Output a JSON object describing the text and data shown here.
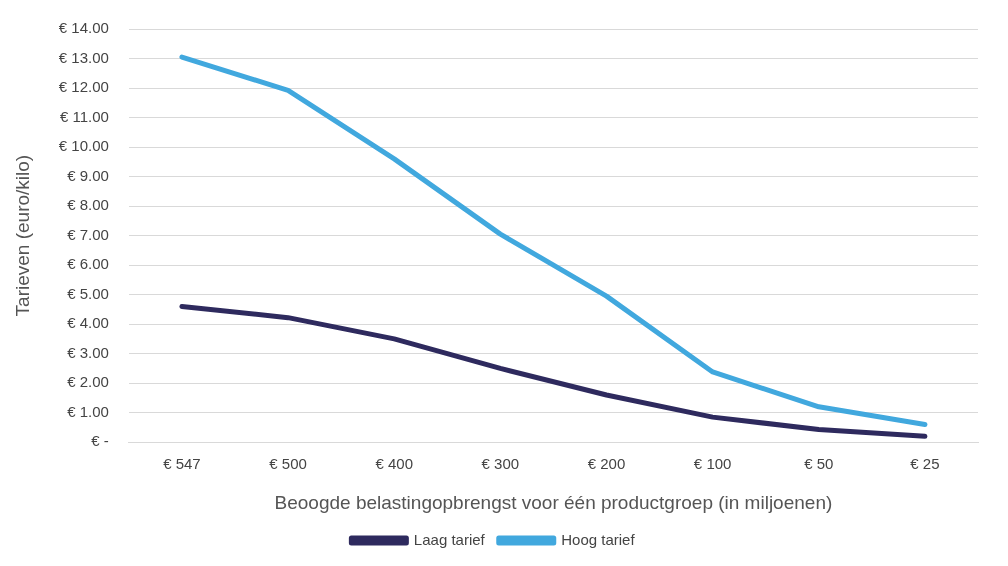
{
  "chart_data": {
    "type": "line",
    "xlabel": "Beoogde belastingopbrengst voor één productgroep (in miljoenen)",
    "ylabel": "Tarieven (euro/kilo)",
    "categories": [
      "€ 547",
      "€ 500",
      "€ 400",
      "€ 300",
      "€ 200",
      "€ 100",
      "€ 50",
      "€ 25"
    ],
    "series": [
      {
        "name": "Laag tarief",
        "color": "#2e2a5e",
        "values": [
          4.6,
          4.22,
          3.5,
          2.5,
          1.6,
          0.85,
          0.43,
          0.2
        ]
      },
      {
        "name": "Hoog tarief",
        "color": "#41a8de",
        "values": [
          13.05,
          11.92,
          9.6,
          7.05,
          4.95,
          2.38,
          1.2,
          0.6
        ]
      }
    ],
    "ylim": [
      0,
      14
    ],
    "yticks": [
      {
        "value": 0,
        "label": "€ -"
      },
      {
        "value": 1,
        "label": "€ 1.00"
      },
      {
        "value": 2,
        "label": "€ 2.00"
      },
      {
        "value": 3,
        "label": "€ 3.00"
      },
      {
        "value": 4,
        "label": "€ 4.00"
      },
      {
        "value": 5,
        "label": "€ 5.00"
      },
      {
        "value": 6,
        "label": "€ 6.00"
      },
      {
        "value": 7,
        "label": "€ 7.00"
      },
      {
        "value": 8,
        "label": "€ 8.00"
      },
      {
        "value": 9,
        "label": "€ 9.00"
      },
      {
        "value": 10,
        "label": "€ 10.00"
      },
      {
        "value": 11,
        "label": "€ 11.00"
      },
      {
        "value": 12,
        "label": "€ 12.00"
      },
      {
        "value": 13,
        "label": "€ 13.00"
      },
      {
        "value": 14,
        "label": "€ 14.00"
      }
    ],
    "grid": "y",
    "legend": "bottom",
    "marker": "none",
    "line_style": "solid"
  }
}
